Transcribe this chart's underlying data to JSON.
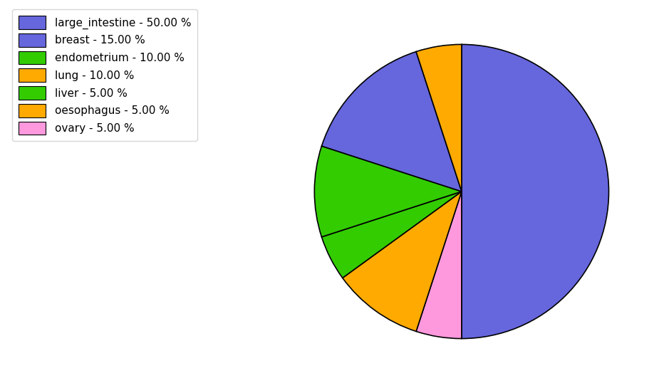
{
  "labels": [
    "large_intestine",
    "breast",
    "endometrium",
    "lung",
    "liver",
    "oesophagus",
    "ovary"
  ],
  "values": [
    50,
    15,
    10,
    10,
    5,
    5,
    5
  ],
  "colors": [
    "#6666dd",
    "#6666dd",
    "#33cc00",
    "#ffaa00",
    "#33cc00",
    "#ffaa00",
    "#ff99dd"
  ],
  "legend_colors": [
    "#5555cc",
    "#6677ee",
    "#22cc00",
    "#ffaa00",
    "#33dd00",
    "#ffbb00",
    "#ff99cc"
  ],
  "legend_labels": [
    "large_intestine - 50.00 %",
    "breast - 15.00 %",
    "endometrium - 10.00 %",
    "lung - 10.00 %",
    "liver - 5.00 %",
    "oesophagus - 5.00 %",
    "ovary - 5.00 %"
  ],
  "startangle": 90,
  "counterclock": false,
  "figsize": [
    9.39,
    5.38
  ],
  "dpi": 100
}
